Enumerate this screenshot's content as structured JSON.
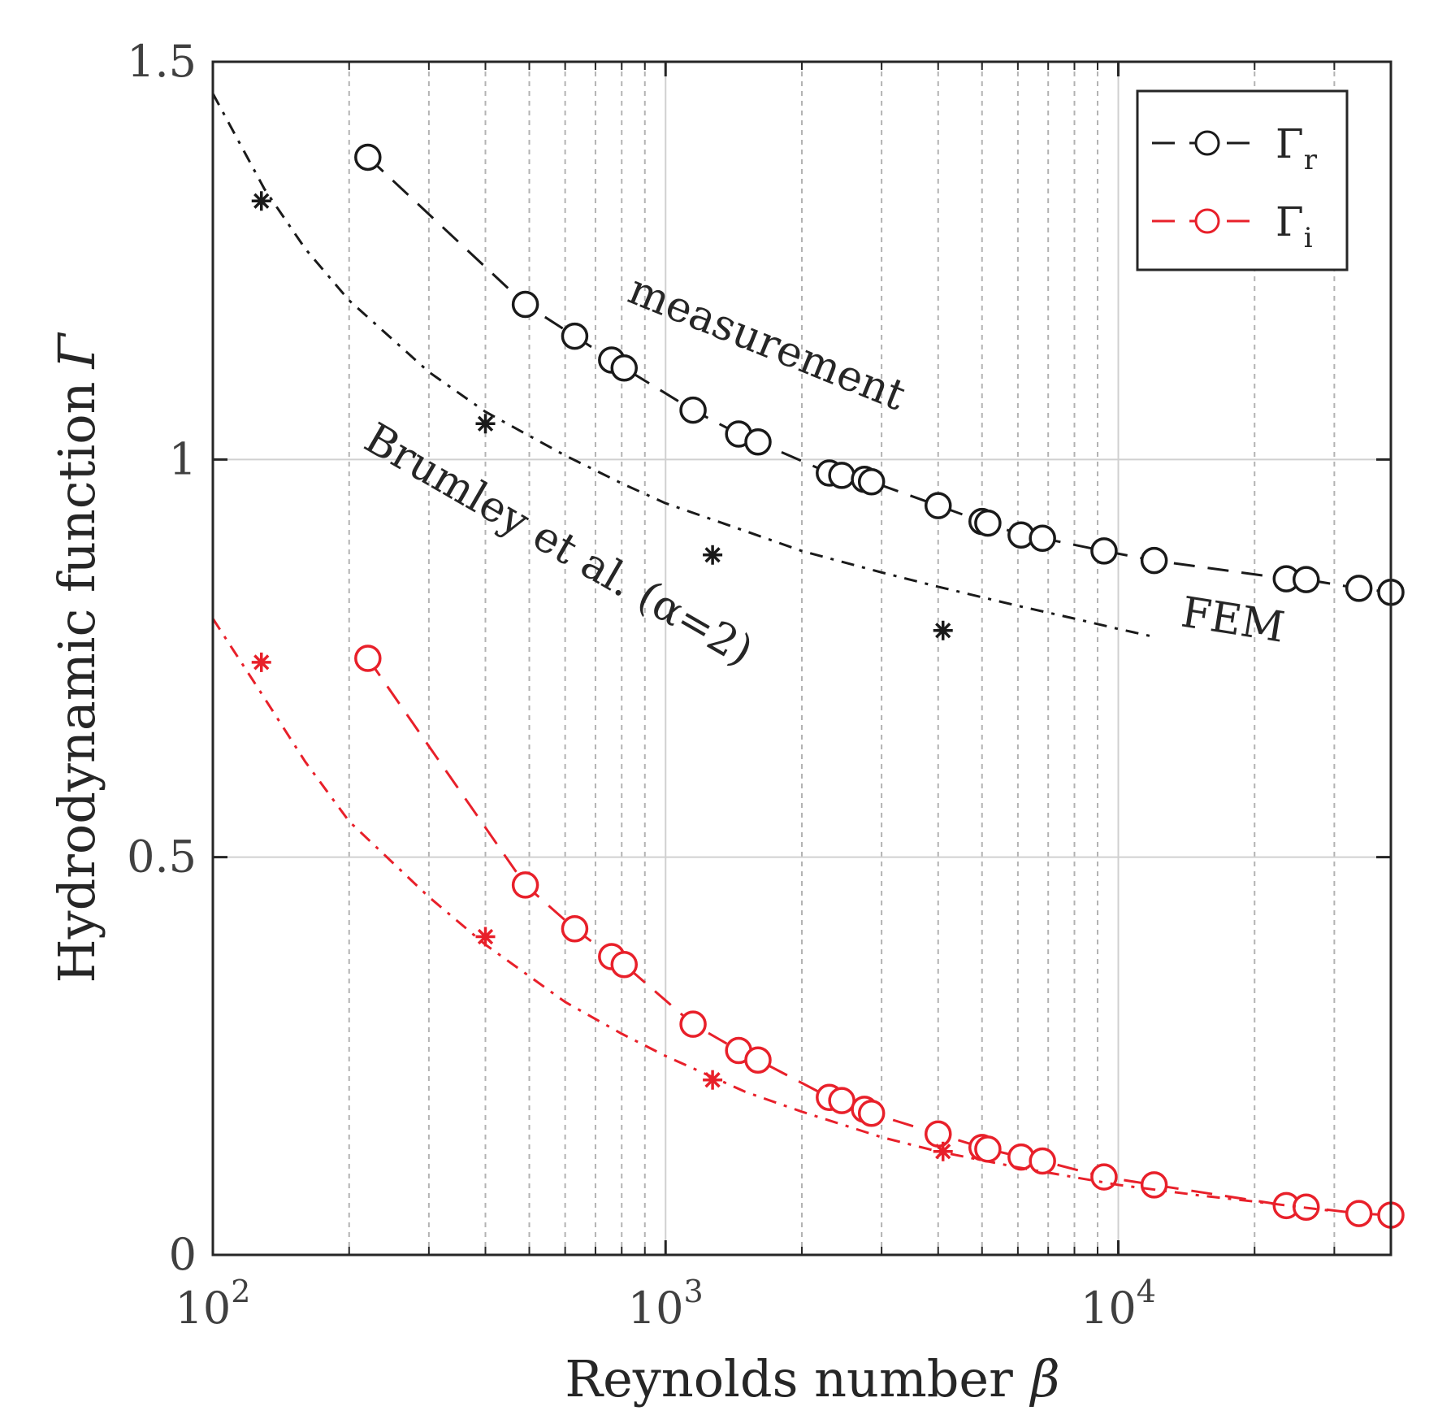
{
  "chart_data": {
    "type": "line",
    "title": "",
    "xlabel": "Reynolds number",
    "xlabel_symbol": "β",
    "ylabel": "Hydrodynamic function",
    "ylabel_symbol": "Γ",
    "xscale": "log",
    "xlim": [
      100,
      40000
    ],
    "ylim": [
      0,
      1.5
    ],
    "x_ticks": [
      {
        "base": "10",
        "exp": "2",
        "value": 100
      },
      {
        "base": "10",
        "exp": "3",
        "value": 1000
      },
      {
        "base": "10",
        "exp": "4",
        "value": 10000
      }
    ],
    "y_ticks": [
      {
        "label": "0",
        "value": 0
      },
      {
        "label": "0.5",
        "value": 0.5
      },
      {
        "label": "1",
        "value": 1.0
      },
      {
        "label": "1.5",
        "value": 1.5
      }
    ],
    "grid": true,
    "legend": {
      "placement": "top-right",
      "entries": [
        {
          "main": "Γ",
          "sub": "r",
          "color": "#1a1a1a"
        },
        {
          "main": "Γ",
          "sub": "i",
          "color": "#e8202a"
        }
      ]
    },
    "annotations": {
      "measurement": "measurement",
      "brumley": "Brumley et al. (α=2)",
      "fem": "FEM"
    },
    "series": [
      {
        "name": "Γr measurement",
        "color": "#1a1a1a",
        "marker": "circle",
        "linestyle": "dashed",
        "x": [
          220,
          490,
          630,
          760,
          810,
          1150,
          1450,
          1600,
          2300,
          2450,
          2750,
          2850,
          4000,
          5000,
          5150,
          6100,
          6800,
          9300,
          12000,
          23500,
          26000,
          34000,
          40000
        ],
        "y": [
          1.38,
          1.195,
          1.155,
          1.125,
          1.115,
          1.062,
          1.032,
          1.022,
          0.983,
          0.98,
          0.975,
          0.972,
          0.942,
          0.922,
          0.92,
          0.905,
          0.901,
          0.885,
          0.873,
          0.85,
          0.849,
          0.838,
          0.833
        ]
      },
      {
        "name": "Γi measurement",
        "color": "#e8202a",
        "marker": "circle",
        "linestyle": "dashed",
        "x": [
          220,
          490,
          630,
          760,
          810,
          1150,
          1450,
          1600,
          2300,
          2450,
          2750,
          2850,
          4000,
          5000,
          5150,
          6100,
          6800,
          9300,
          12000,
          23500,
          26000,
          34000,
          40000
        ],
        "y": [
          0.75,
          0.465,
          0.41,
          0.375,
          0.365,
          0.29,
          0.257,
          0.245,
          0.198,
          0.194,
          0.183,
          0.178,
          0.152,
          0.135,
          0.133,
          0.123,
          0.118,
          0.098,
          0.088,
          0.062,
          0.06,
          0.052,
          0.05
        ]
      },
      {
        "name": "Γr FEM",
        "color": "#1a1a1a",
        "marker": "none",
        "linestyle": "dashdot",
        "x": [
          100,
          130,
          160,
          200,
          300,
          400,
          600,
          800,
          1000,
          1500,
          2000,
          3000,
          4000,
          6000,
          8000,
          10000,
          12000
        ],
        "y": [
          1.46,
          1.34,
          1.265,
          1.2,
          1.11,
          1.06,
          1.005,
          0.97,
          0.945,
          0.91,
          0.885,
          0.858,
          0.84,
          0.816,
          0.8,
          0.787,
          0.777
        ]
      },
      {
        "name": "Γi FEM",
        "color": "#e8202a",
        "marker": "none",
        "linestyle": "dashdot",
        "x": [
          100,
          130,
          160,
          200,
          300,
          400,
          600,
          800,
          1000,
          1500,
          2000,
          3000,
          4000,
          6000,
          10000,
          15000,
          20000,
          30000
        ],
        "y": [
          0.8,
          0.7,
          0.62,
          0.545,
          0.45,
          0.39,
          0.318,
          0.278,
          0.25,
          0.205,
          0.18,
          0.148,
          0.13,
          0.11,
          0.088,
          0.075,
          0.067,
          0.055
        ]
      },
      {
        "name": "Γr Brumley et al. (α=2)",
        "color": "#1a1a1a",
        "marker": "asterisk",
        "linestyle": "none",
        "x": [
          128,
          400,
          1270,
          4100
        ],
        "y": [
          1.325,
          1.045,
          0.88,
          0.785
        ]
      },
      {
        "name": "Γi Brumley et al. (α=2)",
        "color": "#e8202a",
        "marker": "asterisk",
        "linestyle": "none",
        "x": [
          128,
          400,
          1270,
          4100
        ],
        "y": [
          0.745,
          0.4,
          0.22,
          0.13
        ]
      }
    ]
  }
}
